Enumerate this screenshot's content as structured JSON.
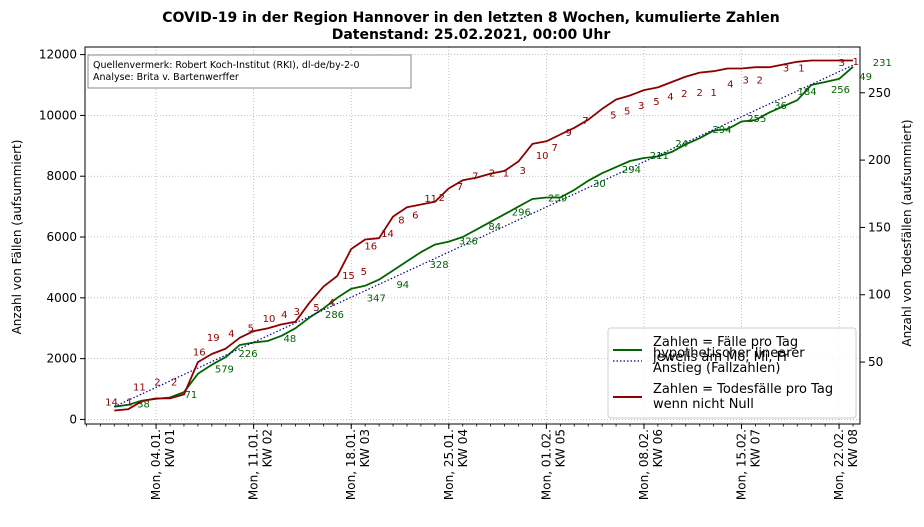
{
  "chart_data": {
    "type": "line",
    "title_line1": "COVID-19 in der Region Hannover in den letzten 8 Wochen, kumulierte Zahlen",
    "title_line2": "Datenstand: 25.02.2021, 00:00 Uhr",
    "source_line1": "Quellenvermerk: Robert Koch-Institut (RKI), dl-de/by-2-0",
    "source_line2": "Analyse: Brita v. Bartenwerffer",
    "ylabel_left": "Anzahl von Fällen (aufsummiert)",
    "ylabel_right": "Anzahl von Todesfällen (aufsummiert)",
    "ylim_left": [
      -150,
      12250
    ],
    "ylim_right": [
      4,
      284
    ],
    "yticks_left": [
      0,
      2000,
      4000,
      6000,
      8000,
      10000,
      12000
    ],
    "yticks_right": [
      50,
      100,
      150,
      200,
      250
    ],
    "xlim": [
      -3.1,
      52.5
    ],
    "grid": true,
    "legend_position": "lower-right",
    "xticks": [
      {
        "x": 2,
        "line1": "Mon, 04.01.",
        "line2": "KW 01"
      },
      {
        "x": 9,
        "line1": "Mon, 11.01.",
        "line2": "KW 02"
      },
      {
        "x": 16,
        "line1": "Mon, 18.01.",
        "line2": "KW 03"
      },
      {
        "x": 23,
        "line1": "Mon, 25.01.",
        "line2": "KW 04"
      },
      {
        "x": 30,
        "line1": "Mon, 01.02.",
        "line2": "KW 05"
      },
      {
        "x": 37,
        "line1": "Mon, 08.02.",
        "line2": "KW 06"
      },
      {
        "x": 44,
        "line1": "Mon, 15.02.",
        "line2": "KW 07"
      },
      {
        "x": 51,
        "line1": "Mon, 22.02.",
        "line2": "KW 08"
      }
    ],
    "series": [
      {
        "name": "Zahlen = Fälle pro Tag\njeweils am Mo, Mi, Fr",
        "axis": "left",
        "color": "#006400",
        "x": [
          -1,
          0,
          1,
          2,
          3,
          4,
          5,
          6,
          7,
          8,
          9,
          10,
          11,
          12,
          13,
          14,
          15,
          16,
          17,
          18,
          19,
          20,
          21,
          22,
          23,
          24,
          25,
          26,
          27,
          28,
          29,
          30,
          31,
          32,
          33,
          34,
          35,
          36,
          37,
          38,
          39,
          40,
          41,
          42,
          43,
          44,
          45,
          46,
          47,
          48,
          49,
          50,
          51,
          52
        ],
        "values": [
          420,
          480,
          620,
          680,
          720,
          900,
          1500,
          1800,
          2050,
          2450,
          2530,
          2580,
          2750,
          3000,
          3350,
          3650,
          4000,
          4300,
          4400,
          4600,
          4900,
          5200,
          5500,
          5750,
          5850,
          6000,
          6250,
          6500,
          6750,
          7000,
          7250,
          7300,
          7300,
          7550,
          7850,
          8100,
          8300,
          8500,
          8600,
          8650,
          8800,
          9050,
          9250,
          9500,
          9550,
          9800,
          9850,
          10100,
          10300,
          10500,
          11000,
          11100,
          11200,
          11600
        ]
      },
      {
        "name": "hypothetischer linearer\nAnstieg (Fallzahlen)",
        "axis": "left",
        "color": "#00008B",
        "dashed": true,
        "x": [
          -1,
          52
        ],
        "values": [
          420,
          11650
        ]
      },
      {
        "name": "Zahlen = Todesfälle pro Tag\nwenn nicht Null",
        "axis": "right",
        "color": "#8B0000",
        "x": [
          -1,
          0,
          1,
          2,
          3,
          4,
          5,
          6,
          7,
          8,
          9,
          10,
          11,
          12,
          13,
          14,
          15,
          16,
          17,
          18,
          19,
          20,
          21,
          22,
          23,
          24,
          25,
          26,
          27,
          28,
          29,
          30,
          31,
          32,
          33,
          34,
          35,
          36,
          37,
          38,
          39,
          40,
          41,
          42,
          43,
          44,
          45,
          46,
          47,
          48,
          49,
          50,
          51,
          52
        ],
        "values": [
          14,
          15,
          21,
          23,
          23,
          26,
          50,
          56,
          60,
          68,
          73,
          75,
          78,
          80,
          94,
          106,
          114,
          134,
          141,
          142,
          158,
          165,
          167,
          169,
          179,
          185,
          187,
          190,
          192,
          199,
          212,
          214,
          219,
          224,
          230,
          238,
          245,
          248,
          252,
          254,
          258,
          262,
          265,
          266,
          268,
          268,
          269,
          269,
          271,
          273,
          274,
          274,
          274,
          274
        ]
      }
    ],
    "case_labels": [
      {
        "x": 1.1,
        "y": 520,
        "text": "38"
      },
      {
        "x": 4.5,
        "y": 840,
        "text": "71"
      },
      {
        "x": 6.9,
        "y": 1680,
        "text": "579"
      },
      {
        "x": 8.6,
        "y": 2180,
        "text": "226"
      },
      {
        "x": 11.6,
        "y": 2680,
        "text": "48"
      },
      {
        "x": 14.8,
        "y": 3460,
        "text": "286"
      },
      {
        "x": 17.8,
        "y": 4010,
        "text": "347"
      },
      {
        "x": 19.7,
        "y": 4450,
        "text": "94"
      },
      {
        "x": 22.3,
        "y": 5120,
        "text": "328"
      },
      {
        "x": 24.4,
        "y": 5890,
        "text": "326"
      },
      {
        "x": 26.3,
        "y": 6370,
        "text": "84"
      },
      {
        "x": 28.2,
        "y": 6840,
        "text": "296"
      },
      {
        "x": 30.8,
        "y": 7300,
        "text": "259"
      },
      {
        "x": 33.8,
        "y": 7780,
        "text": "30"
      },
      {
        "x": 36.1,
        "y": 8230,
        "text": "294"
      },
      {
        "x": 38.1,
        "y": 8700,
        "text": "211"
      },
      {
        "x": 39.7,
        "y": 9090,
        "text": "24"
      },
      {
        "x": 42.6,
        "y": 9550,
        "text": "294"
      },
      {
        "x": 45.1,
        "y": 9920,
        "text": "255"
      },
      {
        "x": 46.8,
        "y": 10340,
        "text": "36"
      },
      {
        "x": 48.7,
        "y": 10800,
        "text": "184"
      },
      {
        "x": 51.1,
        "y": 10870,
        "text": "256"
      },
      {
        "x": 52.9,
        "y": 11300,
        "text": "49"
      },
      {
        "x": 54.1,
        "y": 11750,
        "text": "231"
      }
    ],
    "death_labels": [
      {
        "x": -1.2,
        "y": 20,
        "text": "14"
      },
      {
        "x": 0.1,
        "y": 20,
        "text": "1"
      },
      {
        "x": 0.8,
        "y": 31,
        "text": "11"
      },
      {
        "x": 2.1,
        "y": 35,
        "text": "2"
      },
      {
        "x": 3.3,
        "y": 35,
        "text": "2"
      },
      {
        "x": 5.1,
        "y": 57,
        "text": "16"
      },
      {
        "x": 6.1,
        "y": 68,
        "text": "19"
      },
      {
        "x": 7.4,
        "y": 71,
        "text": "4"
      },
      {
        "x": 8.8,
        "y": 75,
        "text": "5"
      },
      {
        "x": 10.1,
        "y": 82,
        "text": "10"
      },
      {
        "x": 11.2,
        "y": 85,
        "text": "4"
      },
      {
        "x": 12.1,
        "y": 87,
        "text": "3"
      },
      {
        "x": 13.5,
        "y": 90,
        "text": "5"
      },
      {
        "x": 14.6,
        "y": 94,
        "text": "4"
      },
      {
        "x": 15.8,
        "y": 114,
        "text": "15"
      },
      {
        "x": 16.9,
        "y": 117,
        "text": "5"
      },
      {
        "x": 17.4,
        "y": 136,
        "text": "16"
      },
      {
        "x": 18.6,
        "y": 145,
        "text": "14"
      },
      {
        "x": 19.6,
        "y": 155,
        "text": "8"
      },
      {
        "x": 20.6,
        "y": 159,
        "text": "6"
      },
      {
        "x": 21.7,
        "y": 171,
        "text": "11"
      },
      {
        "x": 22.5,
        "y": 172,
        "text": "2"
      },
      {
        "x": 23.8,
        "y": 180,
        "text": "7"
      },
      {
        "x": 24.9,
        "y": 188,
        "text": "7"
      },
      {
        "x": 26.1,
        "y": 190,
        "text": "2"
      },
      {
        "x": 27.1,
        "y": 190,
        "text": "1"
      },
      {
        "x": 28.3,
        "y": 192,
        "text": "3"
      },
      {
        "x": 29.7,
        "y": 203,
        "text": "10"
      },
      {
        "x": 30.6,
        "y": 209,
        "text": "7"
      },
      {
        "x": 31.6,
        "y": 220,
        "text": "9"
      },
      {
        "x": 32.8,
        "y": 229,
        "text": "7"
      },
      {
        "x": 34.8,
        "y": 233,
        "text": "5"
      },
      {
        "x": 35.8,
        "y": 236,
        "text": "5"
      },
      {
        "x": 36.8,
        "y": 240,
        "text": "3"
      },
      {
        "x": 37.9,
        "y": 243,
        "text": "5"
      },
      {
        "x": 38.9,
        "y": 247,
        "text": "4"
      },
      {
        "x": 39.9,
        "y": 249,
        "text": "2"
      },
      {
        "x": 41.0,
        "y": 250,
        "text": "2"
      },
      {
        "x": 42.0,
        "y": 250,
        "text": "1"
      },
      {
        "x": 43.2,
        "y": 256,
        "text": "4"
      },
      {
        "x": 44.3,
        "y": 259,
        "text": "3"
      },
      {
        "x": 45.3,
        "y": 259,
        "text": "2"
      },
      {
        "x": 47.2,
        "y": 268,
        "text": "3"
      },
      {
        "x": 48.3,
        "y": 268,
        "text": "1"
      },
      {
        "x": 51.2,
        "y": 272,
        "text": "3"
      },
      {
        "x": 52.2,
        "y": 273,
        "text": "1"
      }
    ]
  }
}
